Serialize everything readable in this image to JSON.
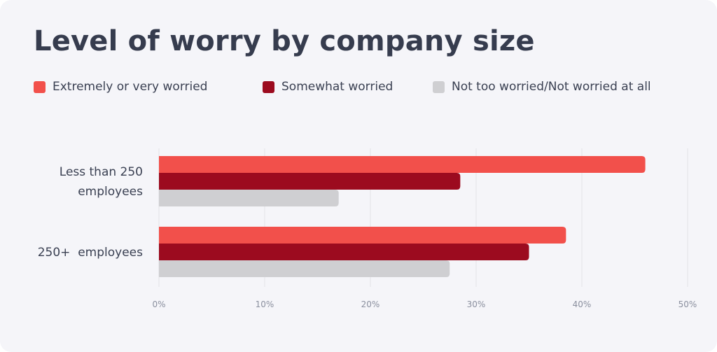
{
  "chart_data": {
    "type": "bar",
    "orientation": "horizontal",
    "title": "Level of worry by company size",
    "categories": [
      "Less than 250|employees",
      "250+  employees"
    ],
    "series": [
      {
        "name": "Extremely or very worried",
        "color": "#f2504b",
        "values": [
          46,
          38.5
        ]
      },
      {
        "name": "Somewhat worried",
        "color": "#9c0b1f",
        "values": [
          28.5,
          35
        ]
      },
      {
        "name": "Not too worried/Not worried at all",
        "color": "#cfcfd2",
        "values": [
          17,
          27.5
        ]
      }
    ],
    "xlim": [
      0,
      50
    ],
    "xticks": [
      0,
      10,
      20,
      30,
      40,
      50
    ],
    "xtick_labels": [
      "0%",
      "10%",
      "20%",
      "30%",
      "40%",
      "50%"
    ],
    "grid": true,
    "legend_position": "top"
  },
  "colors": {
    "background": "#f5f5f9",
    "title": "#363c4e",
    "gridline": "#e3e3e8"
  }
}
